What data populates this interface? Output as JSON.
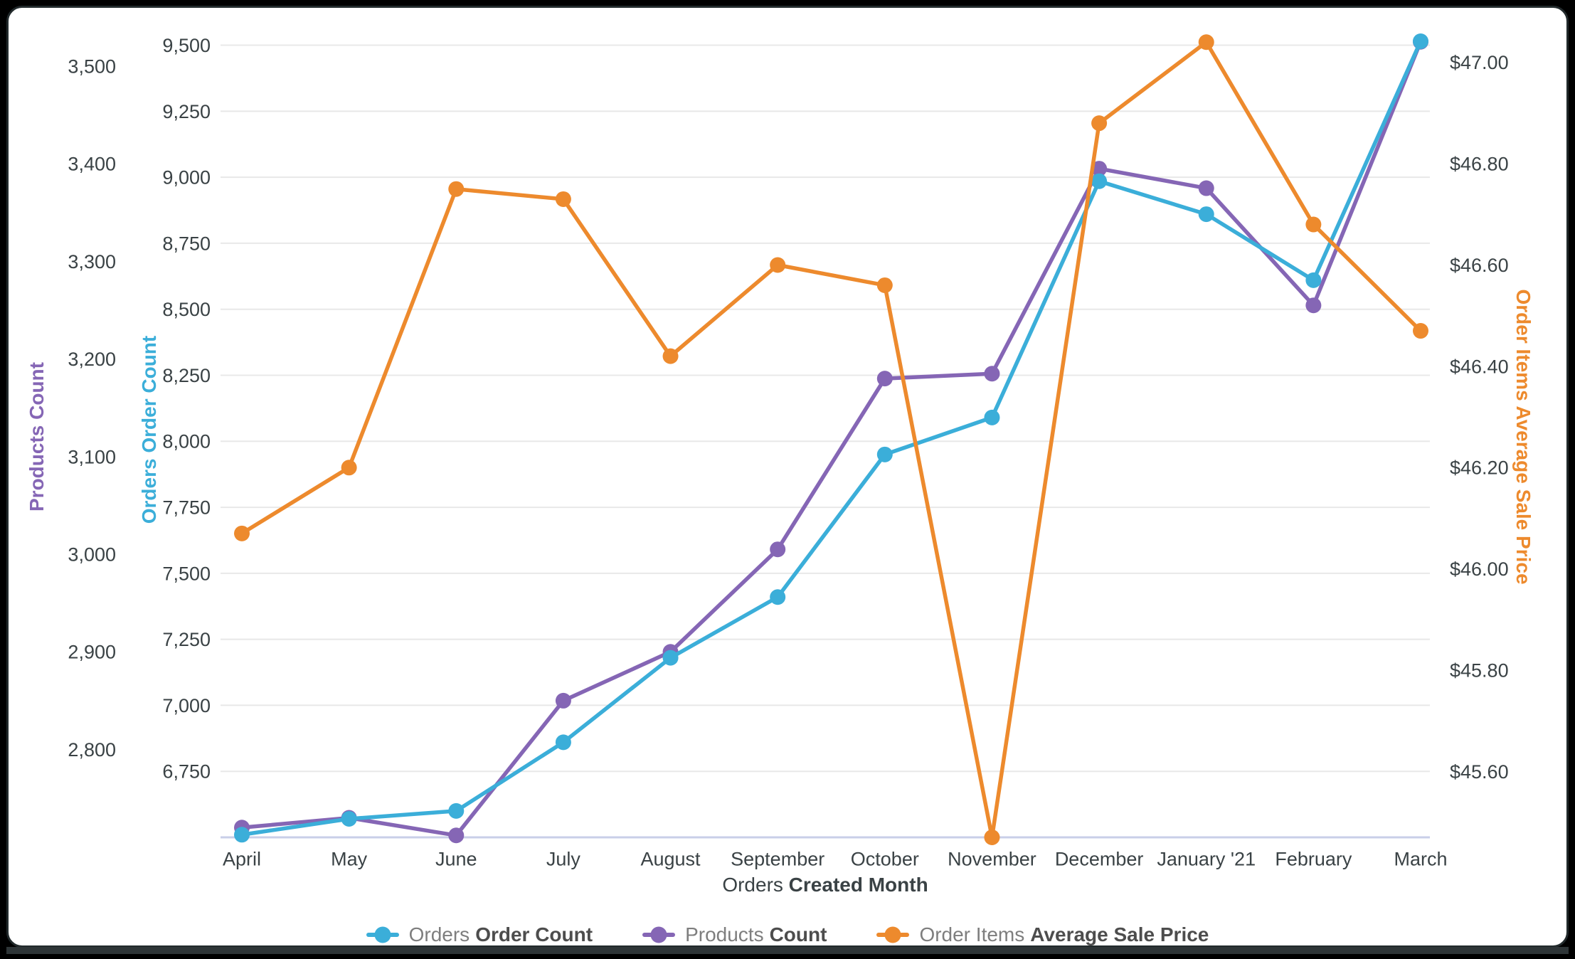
{
  "chart_data": {
    "type": "line",
    "x_categories": [
      "April",
      "May",
      "June",
      "July",
      "August",
      "September",
      "October",
      "November",
      "December",
      "January '21",
      "February",
      "March"
    ],
    "xlabel_prefix": "Orders",
    "xlabel_bold": "Created Month",
    "grid": true,
    "legend_position": "bottom",
    "series": [
      {
        "name": "Orders Order Count",
        "legend_prefix": "Orders",
        "legend_bold": "Order Count",
        "color": "#3BAED9",
        "axis": "orders",
        "values": [
          6510,
          6570,
          6600,
          6860,
          7180,
          7410,
          7950,
          8090,
          8985,
          8860,
          8610,
          9515
        ]
      },
      {
        "name": "Products Count",
        "legend_prefix": "Products",
        "legend_bold": "Count",
        "color": "#8566B5",
        "axis": "products",
        "values": [
          2720,
          2730,
          2712,
          2850,
          2900,
          3005,
          3180,
          3185,
          3395,
          3375,
          3255,
          3525
        ]
      },
      {
        "name": "Order Items Average Sale Price",
        "legend_prefix": "Order Items",
        "legend_bold": "Average Sale Price",
        "color": "#ED8A2D",
        "axis": "price",
        "values": [
          46.07,
          46.2,
          46.75,
          46.73,
          46.42,
          46.6,
          46.56,
          45.47,
          46.88,
          47.04,
          46.68,
          46.47
        ]
      }
    ],
    "axes": {
      "products": {
        "title": "Products Count",
        "color": "#8566B5",
        "side": "left-outer",
        "ylim": [
          2710,
          3535
        ],
        "ticks": [
          3500,
          3400,
          3300,
          3200,
          3100,
          3000,
          2900,
          2800
        ],
        "tick_labels": [
          "3,500",
          "3,400",
          "3,300",
          "3,200",
          "3,100",
          "3,000",
          "2,900",
          "2,800"
        ]
      },
      "orders": {
        "title": "Orders Order Count",
        "color": "#3BAED9",
        "side": "left-inner",
        "ylim": [
          6500,
          9550
        ],
        "ticks": [
          9500,
          9250,
          9000,
          8750,
          8500,
          8250,
          8000,
          7750,
          7500,
          7250,
          7000,
          6750
        ],
        "tick_labels": [
          "9,500",
          "9,250",
          "9,000",
          "8,750",
          "8,500",
          "8,250",
          "8,000",
          "7,750",
          "7,500",
          "7,250",
          "7,000",
          "6,750"
        ]
      },
      "price": {
        "title": "Order Items Average Sale Price",
        "color": "#ED8A2D",
        "side": "right",
        "ylim": [
          45.47,
          47.06
        ],
        "ticks": [
          47.0,
          46.8,
          46.6,
          46.4,
          46.2,
          46.0,
          45.8,
          45.6
        ],
        "tick_labels": [
          "$47.00",
          "$46.80",
          "$46.60",
          "$46.40",
          "$46.20",
          "$46.00",
          "$45.80",
          "$45.60"
        ]
      }
    },
    "style": {
      "gridline_color": "#e8e8e8",
      "axis_line_color": "#c9cfe8",
      "tick_text_color": "#3a4245",
      "legend_text_color": "#7e7e7e",
      "legend_bold_color": "#4d4d4d"
    }
  }
}
